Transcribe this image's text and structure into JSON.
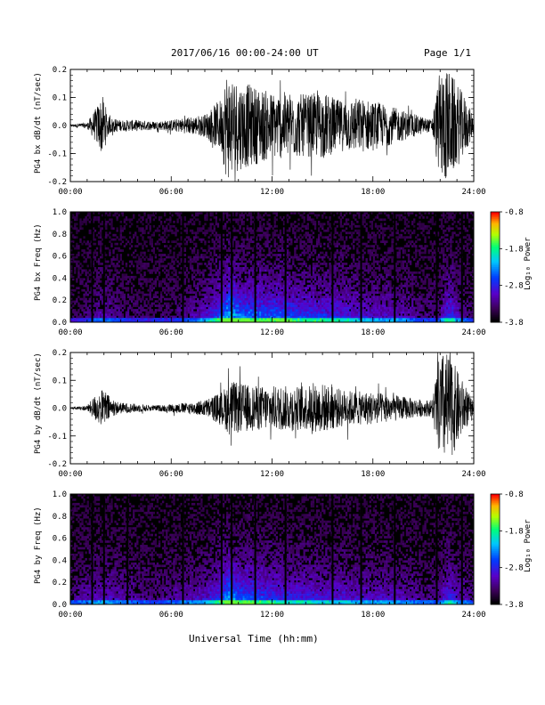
{
  "header": {
    "title": "2017/06/16  00:00-24:00 UT",
    "page": "Page 1/1"
  },
  "footer": {
    "xlabel": "Universal Time (hh:mm)"
  },
  "chart_data": [
    {
      "type": "line",
      "panel": "bx_dbdt",
      "ylabel": "PG4 bx dB/dt (nT/sec)",
      "ylim": [
        -0.2,
        0.2
      ],
      "yticks": [
        "0.2",
        "0.1",
        "0.0",
        "-0.1",
        "-0.2"
      ],
      "xticks": [
        "00:00",
        "06:00",
        "12:00",
        "18:00",
        "24:00"
      ],
      "xlim_hours": [
        0,
        24
      ],
      "envelope": {
        "hours": [
          0,
          1,
          1.5,
          1.9,
          2.3,
          3,
          4,
          5,
          6,
          7,
          8,
          9,
          9.3,
          10,
          11,
          12,
          13,
          14,
          15,
          16,
          17,
          18,
          19,
          20,
          21,
          21.5,
          22,
          22.5,
          23,
          23.5,
          24
        ],
        "amplitude": [
          0.004,
          0.01,
          0.06,
          0.11,
          0.03,
          0.02,
          0.02,
          0.015,
          0.02,
          0.03,
          0.04,
          0.1,
          0.2,
          0.16,
          0.14,
          0.12,
          0.12,
          0.11,
          0.12,
          0.09,
          0.1,
          0.09,
          0.07,
          0.05,
          0.03,
          0.02,
          0.2,
          0.2,
          0.15,
          0.1,
          0.03
        ]
      }
    },
    {
      "type": "heatmap",
      "panel": "bx_spectrogram",
      "ylabel": "PG4 bx Freq (Hz)",
      "ylim": [
        0.0,
        1.0
      ],
      "yticks": [
        "1.0",
        "0.8",
        "0.6",
        "0.4",
        "0.2",
        "0.0"
      ],
      "xticks": [
        "00:00",
        "06:00",
        "12:00",
        "18:00",
        "24:00"
      ],
      "colorbar": {
        "label": "Log₁₀ Power",
        "ticks": [
          "-0.8",
          "-1.8",
          "-2.8",
          "-3.8"
        ],
        "range": [
          -3.8,
          -0.8
        ]
      },
      "activity": {
        "hours": [
          0,
          1,
          2,
          3,
          4,
          5,
          6,
          7,
          8,
          9,
          9.5,
          10,
          11,
          12,
          13,
          14,
          15,
          16,
          17,
          18,
          19,
          20,
          21,
          22,
          22.5,
          23,
          24
        ],
        "level": [
          0.05,
          0.15,
          0.25,
          0.15,
          0.12,
          0.1,
          0.12,
          0.2,
          0.3,
          0.55,
          0.8,
          0.6,
          0.55,
          0.55,
          0.5,
          0.45,
          0.45,
          0.4,
          0.35,
          0.3,
          0.3,
          0.25,
          0.15,
          0.2,
          0.5,
          0.3,
          0.1
        ]
      },
      "dark_lines_hours": [
        1.3,
        2.0,
        6.7,
        9.0,
        9.6,
        11.0,
        12.8,
        15.6,
        17.3,
        19.3,
        21.8,
        23.3
      ]
    },
    {
      "type": "line",
      "panel": "by_dbdt",
      "ylabel": "PG4 by dB/dt (nT/sec)",
      "ylim": [
        -0.2,
        0.2
      ],
      "yticks": [
        "0.2",
        "0.1",
        "0.0",
        "-0.1",
        "-0.2"
      ],
      "xticks": [
        "00:00",
        "06:00",
        "12:00",
        "18:00",
        "24:00"
      ],
      "xlim_hours": [
        0,
        24
      ],
      "envelope": {
        "hours": [
          0,
          1,
          1.5,
          2,
          2.5,
          3,
          4,
          5,
          6,
          7,
          8,
          9,
          9.5,
          10,
          11,
          12,
          13,
          14,
          15,
          16,
          17,
          18,
          19,
          20,
          21,
          21.5,
          22,
          22.5,
          23,
          23.5,
          24
        ],
        "amplitude": [
          0.003,
          0.01,
          0.05,
          0.07,
          0.03,
          0.02,
          0.015,
          0.01,
          0.015,
          0.02,
          0.03,
          0.06,
          0.1,
          0.09,
          0.08,
          0.08,
          0.08,
          0.08,
          0.09,
          0.07,
          0.06,
          0.06,
          0.05,
          0.04,
          0.03,
          0.03,
          0.2,
          0.2,
          0.14,
          0.08,
          0.02
        ]
      }
    },
    {
      "type": "heatmap",
      "panel": "by_spectrogram",
      "ylabel": "PG4 by Freq (Hz)",
      "ylim": [
        0.0,
        1.0
      ],
      "yticks": [
        "1.0",
        "0.8",
        "0.6",
        "0.4",
        "0.2",
        "0.0"
      ],
      "xticks": [
        "00:00",
        "06:00",
        "12:00",
        "18:00",
        "24:00"
      ],
      "colorbar": {
        "label": "Log₁₀ Power",
        "ticks": [
          "-0.8",
          "-1.8",
          "-2.8",
          "-3.8"
        ],
        "range": [
          -3.8,
          -0.8
        ]
      },
      "activity": {
        "hours": [
          0,
          1,
          2,
          3,
          4,
          5,
          6,
          7,
          8,
          9,
          9.5,
          10,
          11,
          12,
          13,
          14,
          15,
          16,
          17,
          18,
          19,
          20,
          21,
          22,
          22.5,
          23,
          24
        ],
        "level": [
          0.15,
          0.25,
          0.3,
          0.25,
          0.2,
          0.15,
          0.2,
          0.25,
          0.3,
          0.5,
          0.75,
          0.55,
          0.5,
          0.45,
          0.4,
          0.4,
          0.35,
          0.35,
          0.3,
          0.3,
          0.3,
          0.25,
          0.2,
          0.2,
          0.45,
          0.3,
          0.15
        ]
      },
      "dark_lines_hours": [
        1.3,
        2.0,
        3.4,
        6.7,
        9.0,
        9.6,
        11.0,
        12.8,
        15.6,
        17.3,
        19.3,
        21.8,
        23.3
      ]
    }
  ]
}
